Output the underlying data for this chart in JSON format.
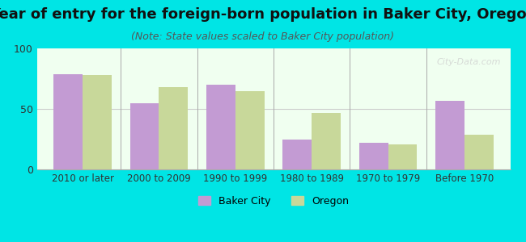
{
  "title": "Year of entry for the foreign-born population in Baker City, Oregon",
  "subtitle": "(Note: State values scaled to Baker City population)",
  "categories": [
    "2010 or later",
    "2000 to 2009",
    "1990 to 1999",
    "1980 to 1989",
    "1970 to 1979",
    "Before 1970"
  ],
  "baker_city_values": [
    79,
    55,
    70,
    25,
    22,
    57
  ],
  "oregon_values": [
    78,
    68,
    65,
    47,
    21,
    29
  ],
  "baker_city_color": "#c39bd3",
  "oregon_color": "#c8d89a",
  "background_color": "#00e5e5",
  "plot_bg": "#f0fff0",
  "ylim": [
    0,
    100
  ],
  "yticks": [
    0,
    50,
    100
  ],
  "bar_width": 0.38,
  "legend_baker_city": "Baker City",
  "legend_oregon": "Oregon",
  "title_fontsize": 13,
  "subtitle_fontsize": 9,
  "watermark": "City-Data.com"
}
